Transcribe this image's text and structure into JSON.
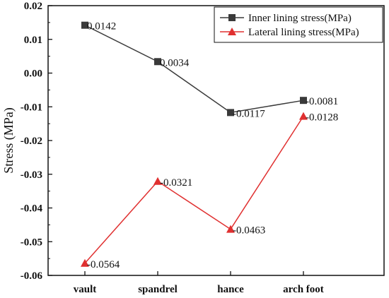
{
  "chart_data": {
    "type": "line",
    "categories": [
      "vault",
      "spandrel",
      "hance",
      "arch foot"
    ],
    "series": [
      {
        "name": "Inner lining stress(MPa)",
        "values": [
          0.0142,
          0.0034,
          -0.0117,
          -0.0081
        ],
        "labels": [
          "0.0142",
          "0.0034",
          "-0.0117",
          "-0.0081"
        ],
        "color": "#3a3a3a",
        "marker": "square"
      },
      {
        "name": "Lateral lining stress(MPa)",
        "values": [
          -0.0564,
          -0.0321,
          -0.0463,
          -0.0128
        ],
        "labels": [
          "-0.0564",
          "-0.0321",
          "-0.0463",
          "-0.0128"
        ],
        "color": "#e03030",
        "marker": "triangle"
      }
    ],
    "ylabel": "Stress (MPa)",
    "xlabel": "",
    "ylim": [
      -0.06,
      0.02
    ],
    "yticks": [
      "0.02",
      "0.01",
      "0.00",
      "-0.01",
      "-0.02",
      "-0.03",
      "-0.04",
      "-0.05",
      "-0.06"
    ],
    "legend_position": "top-right",
    "grid": false
  }
}
